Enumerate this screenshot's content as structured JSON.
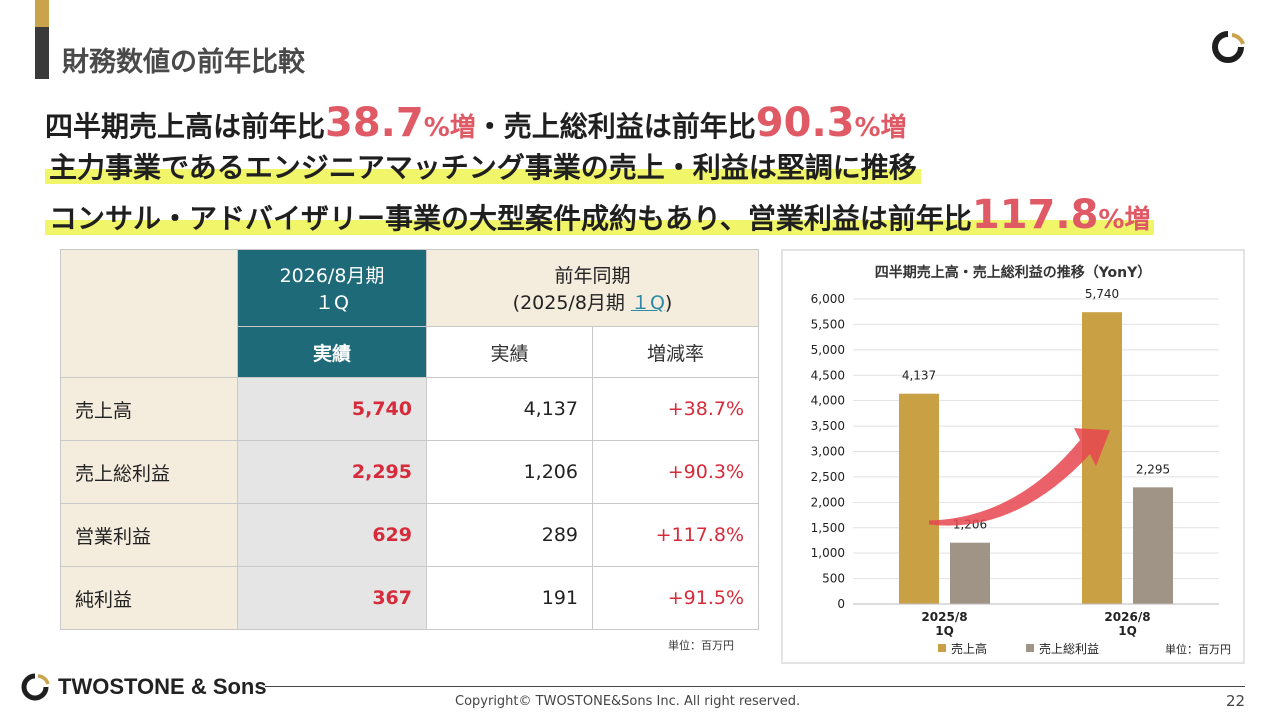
{
  "page": {
    "title": "財務数値の前年比較",
    "page_number": "22",
    "copyright": "Copyright© TWOSTONE&Sons Inc. All right reserved."
  },
  "brand": {
    "name": "TWOSTONE & Sons",
    "colors": {
      "gold": "#c9a44c",
      "teal": "#1e6a78",
      "red": "#e05a66",
      "gray_bar": "#a09486"
    }
  },
  "headline": {
    "line1_a": "四半期売上高は前年比",
    "line1_v1": "38.7",
    "line1_u1": "%増",
    "line1_b": "・売上総利益は前年比",
    "line1_v2": "90.3",
    "line1_u2": "%増",
    "line2": "主力事業であるエンジニアマッチング事業の売上・利益は堅調に推移",
    "line3_a": "コンサル・アドバイザリー事業の大型案件成約もあり、営業利益は前年比",
    "line3_v": "117.8",
    "line3_u": "%増"
  },
  "table": {
    "current_period_l1": "2026/8月期",
    "current_period_l2": "１Q",
    "prev_period_l1": "前年同期",
    "prev_period_l2a": "(2025/8月期 ",
    "prev_period_l2b": "１Q",
    "prev_period_l2c": ")",
    "col_actual": "実績",
    "col_rate": "増減率",
    "rows": [
      {
        "label": "売上高",
        "current": "5,740",
        "previous": "4,137",
        "rate": "+38.7%"
      },
      {
        "label": "売上総利益",
        "current": "2,295",
        "previous": "1,206",
        "rate": "+90.3%"
      },
      {
        "label": "営業利益",
        "current": "629",
        "previous": "289",
        "rate": "+117.8%"
      },
      {
        "label": "純利益",
        "current": "367",
        "previous": "191",
        "rate": "+91.5%"
      }
    ],
    "unit": "単位：百万円"
  },
  "chart_data": {
    "type": "bar",
    "title": "四半期売上高・売上総利益の推移（YonY）",
    "categories": [
      [
        "2025/8",
        "1Q"
      ],
      [
        "2026/8",
        "1Q"
      ]
    ],
    "series": [
      {
        "name": "売上高",
        "values": [
          4137,
          5740
        ],
        "labels": [
          "4,137",
          "5,740"
        ],
        "color": "#c9a044"
      },
      {
        "name": "売上総利益",
        "values": [
          1206,
          2295
        ],
        "labels": [
          "1,206",
          "2,295"
        ],
        "color": "#a09486"
      }
    ],
    "ylim": [
      0,
      6000
    ],
    "yticks": [
      0,
      500,
      1000,
      1500,
      2000,
      2500,
      3000,
      3500,
      4000,
      4500,
      5000,
      5500,
      6000
    ],
    "ytick_labels": [
      "0",
      "500",
      "1,000",
      "1,500",
      "2,000",
      "2,500",
      "3,000",
      "3,500",
      "4,000",
      "4,500",
      "5,000",
      "5,500",
      "6,000"
    ],
    "grid": true,
    "legend": "bottom",
    "unit": "単位：百万円"
  }
}
